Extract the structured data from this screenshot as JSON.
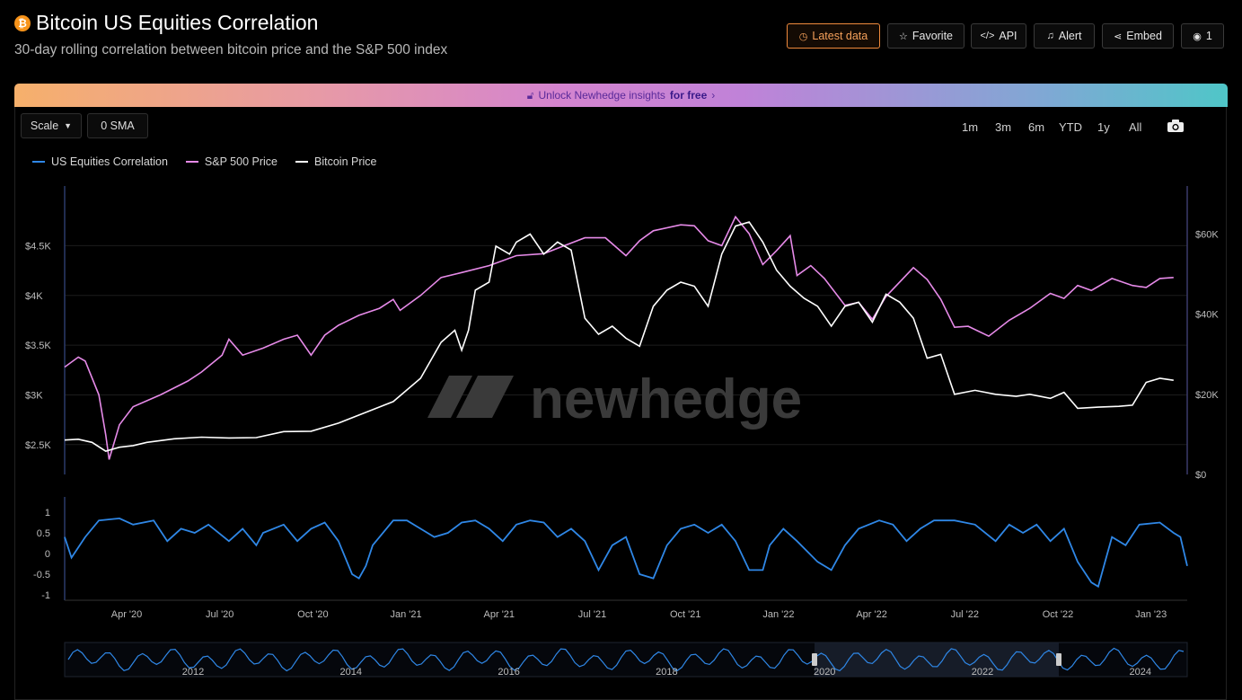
{
  "header": {
    "title": "Bitcoin US Equities Correlation",
    "subtitle": "30-day rolling correlation between bitcoin price and the S&P 500 index",
    "logo_glyph": "₿",
    "buttons": {
      "latest": "Latest data",
      "favorite": "Favorite",
      "api": "API",
      "alert": "Alert",
      "embed": "Embed",
      "views": "1"
    }
  },
  "banner": {
    "prefix": "Unlock Newhedge insights",
    "suffix": "for free",
    "arrow": "›"
  },
  "controls": {
    "scale_label": "Scale",
    "sma_label": "0 SMA",
    "ranges": [
      "1m",
      "3m",
      "6m",
      "YTD",
      "1y",
      "All"
    ]
  },
  "watermark": "newhedge",
  "colors": {
    "correlation": "#2f87e6",
    "sp500": "#e68ae8",
    "bitcoin": "#ffffff",
    "accent": "#f08a3c"
  },
  "chart_data": [
    {
      "type": "line",
      "x_axis_labels": [
        "Apr '20",
        "Jul '20",
        "Oct '20",
        "Jan '21",
        "Apr '21",
        "Jul '21",
        "Oct '21",
        "Jan '22",
        "Apr '22",
        "Jul '22",
        "Oct '22",
        "Jan '23"
      ],
      "left_axis": {
        "ticks": [
          "$2.5K",
          "$3K",
          "$3.5K",
          "$4K",
          "$4.5K"
        ],
        "ylim": [
          2200,
          5100
        ]
      },
      "right_axis": {
        "ticks": [
          "$0",
          "$20K",
          "$40K",
          "$60K"
        ],
        "ylim": [
          0,
          72000
        ]
      },
      "series": [
        {
          "name": "S&P 500 Price",
          "axis": "left",
          "points": [
            [
              0,
              3280
            ],
            [
              2,
              3380
            ],
            [
              3,
              3340
            ],
            [
              5,
              3000
            ],
            [
              6,
              2600
            ],
            [
              6.5,
              2350
            ],
            [
              8,
              2700
            ],
            [
              10,
              2880
            ],
            [
              14,
              3000
            ],
            [
              18,
              3140
            ],
            [
              20,
              3230
            ],
            [
              23,
              3400
            ],
            [
              24,
              3560
            ],
            [
              26,
              3400
            ],
            [
              29,
              3470
            ],
            [
              32,
              3560
            ],
            [
              34,
              3600
            ],
            [
              36,
              3400
            ],
            [
              38,
              3600
            ],
            [
              40,
              3700
            ],
            [
              43,
              3800
            ],
            [
              46,
              3870
            ],
            [
              48,
              3960
            ],
            [
              49,
              3850
            ],
            [
              52,
              4000
            ],
            [
              55,
              4180
            ],
            [
              58,
              4230
            ],
            [
              62,
              4300
            ],
            [
              66,
              4400
            ],
            [
              70,
              4420
            ],
            [
              73,
              4500
            ],
            [
              76,
              4580
            ],
            [
              79,
              4580
            ],
            [
              82,
              4400
            ],
            [
              84,
              4550
            ],
            [
              86,
              4650
            ],
            [
              90,
              4710
            ],
            [
              92,
              4700
            ],
            [
              94,
              4550
            ],
            [
              96,
              4500
            ],
            [
              98,
              4790
            ],
            [
              100,
              4620
            ],
            [
              102,
              4310
            ],
            [
              104,
              4450
            ],
            [
              106,
              4600
            ],
            [
              107,
              4200
            ],
            [
              109,
              4300
            ],
            [
              111,
              4170
            ],
            [
              114,
              3900
            ],
            [
              116,
              3930
            ],
            [
              118,
              3760
            ],
            [
              120,
              3990
            ],
            [
              124,
              4280
            ],
            [
              126,
              4160
            ],
            [
              128,
              3960
            ],
            [
              130,
              3680
            ],
            [
              132,
              3690
            ],
            [
              135,
              3590
            ],
            [
              138,
              3750
            ],
            [
              141,
              3870
            ],
            [
              144,
              4020
            ],
            [
              146,
              3970
            ],
            [
              148,
              4100
            ],
            [
              150,
              4050
            ],
            [
              153,
              4170
            ],
            [
              156,
              4100
            ],
            [
              158,
              4080
            ],
            [
              160,
              4170
            ],
            [
              162,
              4180
            ]
          ]
        },
        {
          "name": "Bitcoin Price",
          "axis": "right",
          "points": [
            [
              0,
              8600
            ],
            [
              2,
              8800
            ],
            [
              4,
              8000
            ],
            [
              6,
              5800
            ],
            [
              8,
              6800
            ],
            [
              10,
              7200
            ],
            [
              12,
              8000
            ],
            [
              16,
              8900
            ],
            [
              20,
              9300
            ],
            [
              24,
              9100
            ],
            [
              28,
              9200
            ],
            [
              32,
              10700
            ],
            [
              36,
              10800
            ],
            [
              40,
              12800
            ],
            [
              44,
              15500
            ],
            [
              48,
              18200
            ],
            [
              52,
              24000
            ],
            [
              55,
              33000
            ],
            [
              57,
              36000
            ],
            [
              58,
              31000
            ],
            [
              59,
              36000
            ],
            [
              60,
              46000
            ],
            [
              62,
              48000
            ],
            [
              63,
              57000
            ],
            [
              65,
              55000
            ],
            [
              66,
              58000
            ],
            [
              68,
              60000
            ],
            [
              70,
              55000
            ],
            [
              72,
              58000
            ],
            [
              74,
              56000
            ],
            [
              76,
              39000
            ],
            [
              78,
              35000
            ],
            [
              80,
              37000
            ],
            [
              82,
              34000
            ],
            [
              84,
              32000
            ],
            [
              86,
              42000
            ],
            [
              88,
              46000
            ],
            [
              90,
              48000
            ],
            [
              92,
              47000
            ],
            [
              94,
              42000
            ],
            [
              96,
              55000
            ],
            [
              98,
              62000
            ],
            [
              100,
              63000
            ],
            [
              102,
              58000
            ],
            [
              104,
              51000
            ],
            [
              106,
              47000
            ],
            [
              108,
              44000
            ],
            [
              110,
              42000
            ],
            [
              112,
              37000
            ],
            [
              114,
              42000
            ],
            [
              116,
              43000
            ],
            [
              118,
              38000
            ],
            [
              120,
              45000
            ],
            [
              122,
              43000
            ],
            [
              124,
              39000
            ],
            [
              126,
              29000
            ],
            [
              128,
              30000
            ],
            [
              130,
              20000
            ],
            [
              133,
              21000
            ],
            [
              136,
              20000
            ],
            [
              139,
              19500
            ],
            [
              141,
              20000
            ],
            [
              144,
              19000
            ],
            [
              146,
              20500
            ],
            [
              148,
              16500
            ],
            [
              151,
              16800
            ],
            [
              154,
              17000
            ],
            [
              156,
              17300
            ],
            [
              158,
              23000
            ],
            [
              160,
              24000
            ],
            [
              162,
              23500
            ]
          ]
        },
        {
          "name": "US Equities Correlation",
          "axis": "correlation",
          "ylim": [
            -1,
            1
          ],
          "ticks": [
            "1",
            "0.5",
            "0",
            "-0.5",
            "-1"
          ],
          "points": [
            [
              0,
              0.4
            ],
            [
              1,
              -0.1
            ],
            [
              3,
              0.4
            ],
            [
              5,
              0.8
            ],
            [
              8,
              0.85
            ],
            [
              10,
              0.7
            ],
            [
              13,
              0.8
            ],
            [
              15,
              0.3
            ],
            [
              17,
              0.6
            ],
            [
              19,
              0.5
            ],
            [
              21,
              0.7
            ],
            [
              24,
              0.3
            ],
            [
              26,
              0.6
            ],
            [
              28,
              0.2
            ],
            [
              29,
              0.5
            ],
            [
              32,
              0.7
            ],
            [
              34,
              0.3
            ],
            [
              36,
              0.6
            ],
            [
              38,
              0.75
            ],
            [
              40,
              0.3
            ],
            [
              42,
              -0.5
            ],
            [
              43,
              -0.6
            ],
            [
              44,
              -0.3
            ],
            [
              45,
              0.2
            ],
            [
              48,
              0.8
            ],
            [
              50,
              0.8
            ],
            [
              52,
              0.6
            ],
            [
              54,
              0.4
            ],
            [
              56,
              0.5
            ],
            [
              58,
              0.75
            ],
            [
              60,
              0.8
            ],
            [
              62,
              0.6
            ],
            [
              64,
              0.3
            ],
            [
              66,
              0.7
            ],
            [
              68,
              0.8
            ],
            [
              70,
              0.75
            ],
            [
              72,
              0.4
            ],
            [
              74,
              0.6
            ],
            [
              76,
              0.3
            ],
            [
              78,
              -0.4
            ],
            [
              80,
              0.2
            ],
            [
              82,
              0.4
            ],
            [
              84,
              -0.5
            ],
            [
              86,
              -0.6
            ],
            [
              88,
              0.2
            ],
            [
              90,
              0.6
            ],
            [
              92,
              0.7
            ],
            [
              94,
              0.5
            ],
            [
              96,
              0.7
            ],
            [
              98,
              0.3
            ],
            [
              100,
              -0.4
            ],
            [
              102,
              -0.4
            ],
            [
              103,
              0.2
            ],
            [
              105,
              0.6
            ],
            [
              107,
              0.3
            ],
            [
              110,
              -0.2
            ],
            [
              112,
              -0.4
            ],
            [
              114,
              0.2
            ],
            [
              116,
              0.6
            ],
            [
              119,
              0.8
            ],
            [
              121,
              0.7
            ],
            [
              123,
              0.3
            ],
            [
              125,
              0.6
            ],
            [
              127,
              0.8
            ],
            [
              130,
              0.8
            ],
            [
              133,
              0.7
            ],
            [
              136,
              0.3
            ],
            [
              138,
              0.7
            ],
            [
              140,
              0.5
            ],
            [
              142,
              0.7
            ],
            [
              144,
              0.3
            ],
            [
              146,
              0.6
            ],
            [
              148,
              -0.2
            ],
            [
              150,
              -0.7
            ],
            [
              151,
              -0.8
            ],
            [
              152,
              -0.2
            ],
            [
              153,
              0.4
            ],
            [
              155,
              0.2
            ],
            [
              157,
              0.7
            ],
            [
              160,
              0.75
            ],
            [
              162,
              0.5
            ],
            [
              163,
              0.4
            ],
            [
              164,
              -0.3
            ]
          ]
        }
      ]
    },
    {
      "type": "area",
      "name": "navigator",
      "x_axis_labels": [
        "2012",
        "2014",
        "2016",
        "2018",
        "2020",
        "2022",
        "2024"
      ]
    }
  ]
}
